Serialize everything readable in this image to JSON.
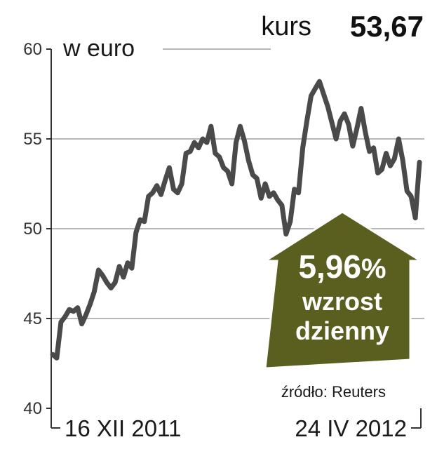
{
  "chart_data": {
    "type": "line",
    "unit_label": "w euro",
    "price": {
      "label": "kurs",
      "value": "53,67"
    },
    "ylim": [
      40,
      60
    ],
    "yticks": [
      "40",
      "45",
      "50",
      "55",
      "60"
    ],
    "grid": true,
    "xlabels": [
      "16 XII 2011",
      "24 IV 2012"
    ],
    "source": "źródło: Reuters",
    "change": {
      "value": "5,96",
      "percent_sign": "%",
      "line1": "wzrost",
      "line2": "dzienny"
    },
    "colors": {
      "line": "#4a4a4a",
      "arrow": "#5a5f20",
      "grid": "#a0a0a0"
    },
    "series": [
      {
        "values": [
          43.0,
          42.8,
          44.8,
          45.1,
          45.5,
          45.4,
          45.6,
          44.7,
          45.2,
          45.8,
          46.5,
          47.7,
          47.4,
          47.0,
          46.7,
          47.0,
          47.9,
          47.3,
          48.1,
          47.8,
          49.8,
          50.5,
          50.4,
          51.8,
          52.0,
          52.4,
          51.9,
          52.7,
          53.4,
          52.2,
          52.0,
          52.5,
          54.2,
          54.3,
          54.8,
          54.5,
          55.0,
          54.8,
          55.7,
          54.2,
          54.0,
          53.4,
          53.2,
          52.5,
          54.8,
          55.7,
          54.9,
          53.8,
          53.0,
          52.8,
          51.7,
          52.5,
          51.8,
          52.0,
          51.6,
          51.3,
          49.7,
          50.4,
          52.2,
          52.0,
          54.5,
          56.0,
          57.4,
          57.8,
          58.2,
          57.5,
          56.8,
          55.9,
          55.0,
          56.0,
          56.4,
          55.8,
          54.6,
          55.6,
          56.7,
          55.4,
          54.3,
          54.5,
          53.1,
          53.3,
          54.2,
          53.5,
          53.9,
          55.0,
          53.8,
          52.1,
          51.8,
          50.6,
          53.7
        ]
      }
    ]
  }
}
